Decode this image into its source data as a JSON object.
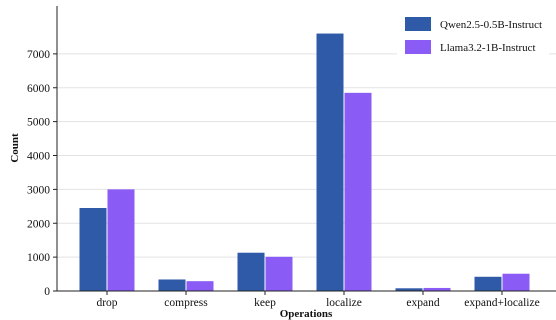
{
  "chart_data": {
    "type": "bar",
    "title": "",
    "xlabel": "Operations",
    "ylabel": "Count",
    "categories": [
      "drop",
      "compress",
      "keep",
      "localize",
      "expand",
      "expand+localize"
    ],
    "series": [
      {
        "name": "Qwen2.5-0.5B-Instruct",
        "color": "#2e5aa8",
        "values": [
          2450,
          340,
          1130,
          7600,
          80,
          420
        ]
      },
      {
        "name": "Llama3.2-1B-Instruct",
        "color": "#8a5cf5",
        "values": [
          3000,
          290,
          1010,
          5850,
          90,
          510
        ]
      }
    ],
    "ylim": [
      0,
      8000
    ],
    "yticks": [
      0,
      1000,
      2000,
      3000,
      4000,
      5000,
      6000,
      7000
    ],
    "grid": true,
    "legend": "top-right"
  }
}
